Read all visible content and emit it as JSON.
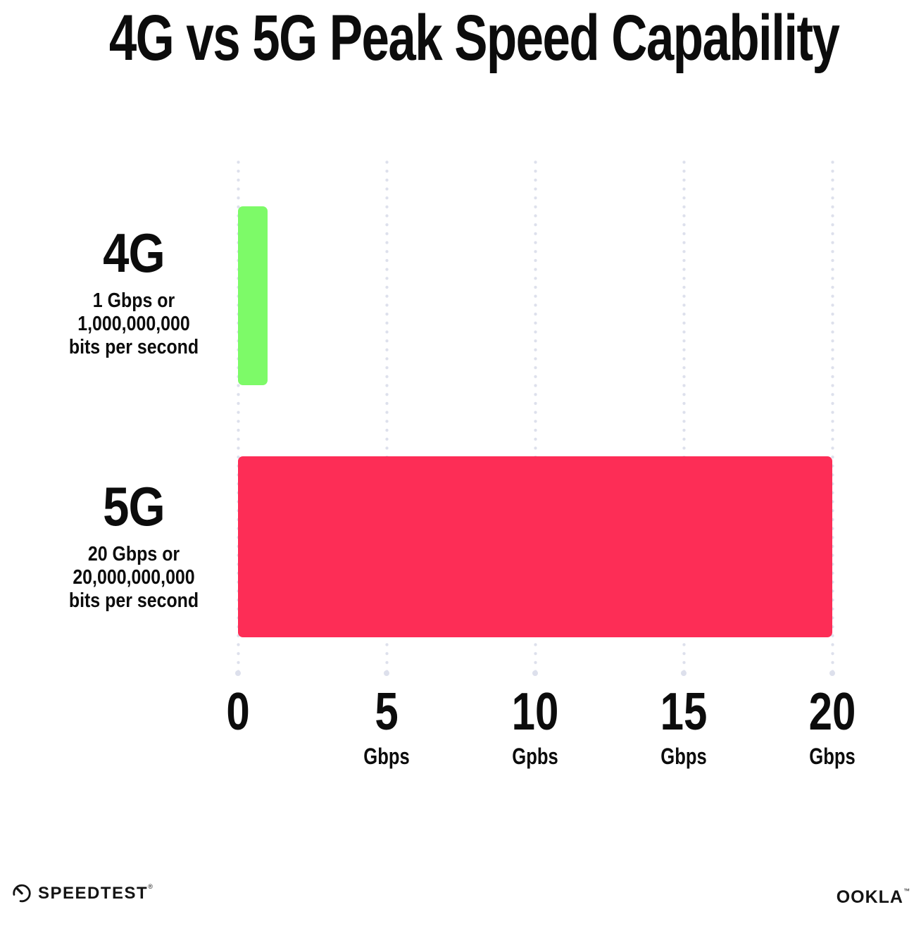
{
  "title": "4G vs 5G Peak Speed Capability",
  "chart_data": {
    "type": "bar",
    "orientation": "horizontal",
    "title": "4G vs 5G Peak Speed Capability",
    "categories": [
      "4G",
      "5G"
    ],
    "values": [
      1,
      20
    ],
    "value_unit": "Gbps",
    "xlim": [
      0,
      20
    ],
    "x_ticks": [
      0,
      5,
      10,
      15,
      20
    ],
    "bar_colors": [
      "#7dfa68",
      "#fd2d56"
    ],
    "grid": "vertical dotted gridlines at each tick",
    "legend": "none",
    "annotations": [
      "4G: 1 Gbps or 1,000,000,000 bits per second",
      "5G: 20 Gbps or 20,000,000,000 bits per second"
    ]
  },
  "rows": [
    {
      "label": "4G",
      "sub1": "1 Gbps or",
      "sub2": "1,000,000,000",
      "sub3": "bits per second"
    },
    {
      "label": "5G",
      "sub1": "20 Gbps or",
      "sub2": "20,000,000,000",
      "sub3": "bits per second"
    }
  ],
  "ticks": [
    {
      "num": "0",
      "unit": ""
    },
    {
      "num": "5",
      "unit": "Gbps"
    },
    {
      "num": "10",
      "unit": "Gpbs"
    },
    {
      "num": "15",
      "unit": "Gbps"
    },
    {
      "num": "20",
      "unit": "Gbps"
    }
  ],
  "footer": {
    "speedtest": "SPEEDTEST",
    "speedtest_mark": "®",
    "ookla": "OOKLA",
    "ookla_mark": "™"
  },
  "colors": {
    "bar_4g": "#7dfa68",
    "bar_5g": "#fd2d56",
    "gridline": "#dde0ec",
    "text": "#0c0c0c",
    "background": "#ffffff"
  }
}
